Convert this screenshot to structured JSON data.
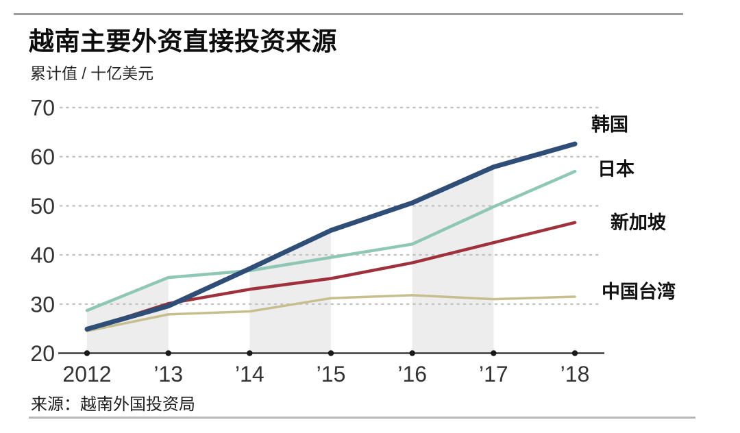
{
  "header": {
    "title": "越南主要外资直接投资来源",
    "subtitle": "累计值 / 十亿美元"
  },
  "source": {
    "label": "来源：越南外国投资局"
  },
  "chart_data": {
    "type": "line",
    "title": "越南主要外资直接投资来源",
    "unit_label": "累计值 / 十亿美元",
    "x": [
      2012,
      2013,
      2014,
      2015,
      2016,
      2017,
      2018
    ],
    "x_tick_labels": [
      "2012",
      "’13",
      "’14",
      "’15",
      "’16",
      "’17",
      "’18"
    ],
    "y_ticks": [
      20,
      30,
      40,
      50,
      60,
      70
    ],
    "ylim": [
      20,
      70
    ],
    "grid": "dotted-horizontal",
    "legend_position": "right-of-line-ends",
    "series": [
      {
        "name": "韩国",
        "color": "#2e4d77",
        "stroke_width": 7,
        "values": [
          24.9,
          29.6,
          37.2,
          45.0,
          50.6,
          57.9,
          62.6
        ]
      },
      {
        "name": "日本",
        "color": "#8fc7b6",
        "stroke_width": 4.5,
        "values": [
          28.7,
          35.4,
          36.8,
          39.5,
          42.2,
          49.8,
          57.0
        ]
      },
      {
        "name": "新加坡",
        "color": "#9e313b",
        "stroke_width": 4.5,
        "values": [
          24.8,
          30.1,
          33.0,
          35.2,
          38.4,
          42.5,
          46.6
        ]
      },
      {
        "name": "中国台湾",
        "color": "#c6be8d",
        "stroke_width": 3.5,
        "values": [
          24.5,
          27.9,
          28.5,
          31.2,
          31.8,
          31.0,
          31.5
        ]
      }
    ],
    "shaded_bands_years": [
      [
        2012,
        2013
      ],
      [
        2014,
        2015
      ],
      [
        2016,
        2017
      ]
    ],
    "band_color": "#ededed",
    "gridline_color": "#c3c3c3",
    "axis_color": "#3c3c3c",
    "tick_label_color": "#333333"
  }
}
